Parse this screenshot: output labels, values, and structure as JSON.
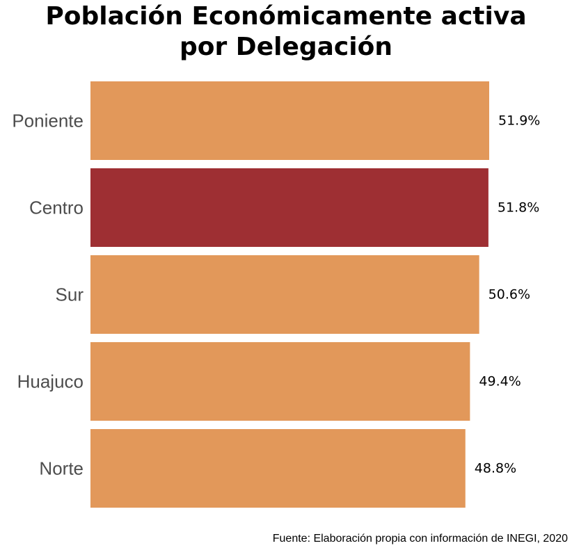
{
  "chart_data": {
    "type": "bar",
    "orientation": "horizontal",
    "title_line1": "Población Económicamente activa",
    "title_line2": "por Delegación",
    "categories": [
      "Poniente",
      "Centro",
      "Sur",
      "Huajuco",
      "Norte"
    ],
    "values": [
      51.9,
      51.8,
      50.6,
      49.4,
      48.8
    ],
    "value_labels": [
      "51.9%",
      "51.8%",
      "50.6%",
      "49.4%",
      "48.8%"
    ],
    "colors": [
      "#e2985a",
      "#9e2f33",
      "#e2985a",
      "#e2985a",
      "#e2985a"
    ],
    "xlim": [
      0,
      51.9
    ],
    "grid": false,
    "legend": "none",
    "source": "Fuente: Elaboración propia con información de INEGI, 2020"
  }
}
